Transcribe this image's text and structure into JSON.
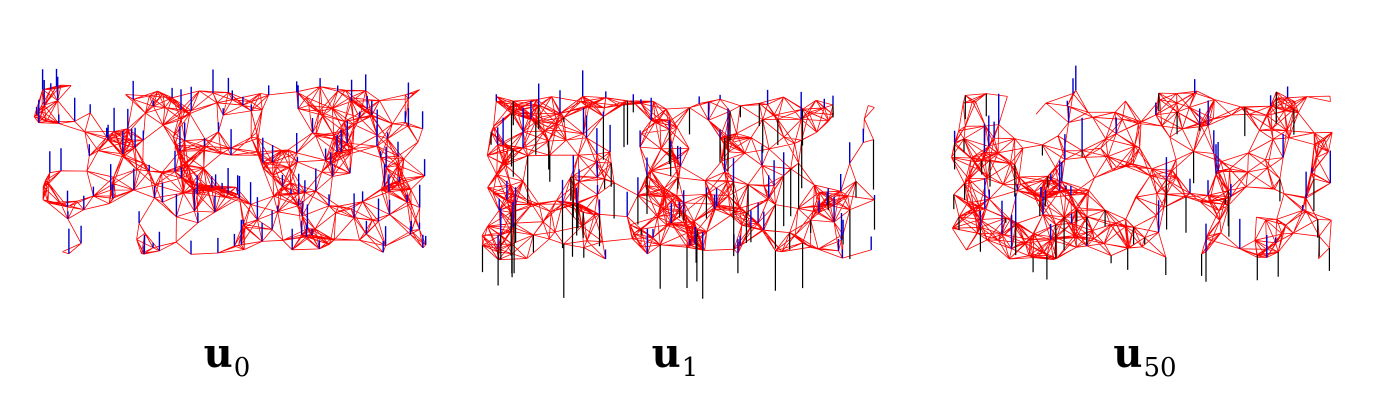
{
  "colors": {
    "network": "#ff0000",
    "spike_pos": "#0000cc",
    "spike_neg": "#000000"
  },
  "panels": [
    {
      "base": "u",
      "sub": "0"
    },
    {
      "base": "u",
      "sub": "1"
    },
    {
      "base": "u",
      "sub": "50"
    }
  ]
}
